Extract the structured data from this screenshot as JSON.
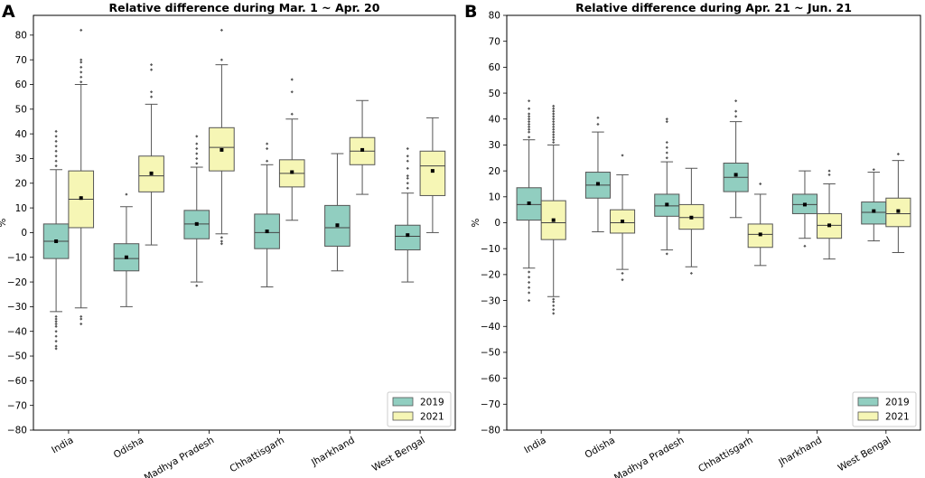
{
  "colors": {
    "2019": "#91cec0",
    "2021": "#f6f6b5"
  },
  "chart_data": [
    {
      "type": "boxplot",
      "panel_label": "A",
      "title": "Relative difference during Mar. 1 ~ Apr. 20",
      "xlabel": "",
      "ylabel": "%",
      "ylim": [
        -80,
        88
      ],
      "yticks": [
        -80,
        -70,
        -60,
        -50,
        -40,
        -30,
        -20,
        -10,
        0,
        10,
        20,
        30,
        40,
        50,
        60,
        70,
        80
      ],
      "categories": [
        "India",
        "Odisha",
        "Madhya Pradesh",
        "Chhattisgarh",
        "Jharkhand",
        "West Bengal"
      ],
      "legend": {
        "position": "bottom-right",
        "entries": [
          "2019",
          "2021"
        ]
      },
      "series": [
        {
          "name": "2019",
          "boxes": [
            {
              "lw": -32,
              "q1": -10.5,
              "median": -3.5,
              "q3": 3.5,
              "uw": 25.5,
              "mean": -3.5,
              "outliers": [
                -47,
                -46,
                -44,
                -42,
                -40,
                -38,
                -37,
                -36,
                -35,
                -34,
                27,
                29,
                31,
                33,
                35,
                37,
                39,
                41
              ]
            },
            {
              "lw": -30,
              "q1": -15.5,
              "median": -10.5,
              "q3": -4.5,
              "uw": 10.5,
              "mean": -10,
              "outliers": [
                15.5
              ]
            },
            {
              "lw": -20,
              "q1": -2.5,
              "median": 3.5,
              "q3": 9,
              "uw": 26.5,
              "mean": 3.5,
              "outliers": [
                -21.5,
                28,
                30,
                32,
                34,
                36,
                39
              ]
            },
            {
              "lw": -22,
              "q1": -6.5,
              "median": 0,
              "q3": 7.5,
              "uw": 27.5,
              "mean": 0.5,
              "outliers": [
                29,
                34,
                36
              ]
            },
            {
              "lw": -15.5,
              "q1": -5.5,
              "median": 2,
              "q3": 11,
              "uw": 32,
              "mean": 3,
              "outliers": []
            },
            {
              "lw": -20,
              "q1": -7,
              "median": -1.5,
              "q3": 3,
              "uw": 16,
              "mean": -1,
              "outliers": [
                18,
                20,
                22,
                23,
                26,
                29,
                31,
                34
              ]
            }
          ]
        },
        {
          "name": "2021",
          "boxes": [
            {
              "lw": -30.5,
              "q1": 2,
              "median": 13.5,
              "q3": 25,
              "uw": 60,
              "mean": 14,
              "outliers": [
                -37,
                -35,
                -34,
                61,
                63,
                65,
                67,
                69,
                70,
                82
              ]
            },
            {
              "lw": -5,
              "q1": 16.5,
              "median": 23,
              "q3": 31,
              "uw": 52,
              "mean": 24,
              "outliers": [
                55,
                57,
                66,
                68
              ]
            },
            {
              "lw": -0.5,
              "q1": 25,
              "median": 34.5,
              "q3": 42.5,
              "uw": 68,
              "mean": 33.5,
              "outliers": [
                -2,
                -3.5,
                -4.5,
                70,
                82
              ]
            },
            {
              "lw": 5,
              "q1": 18.5,
              "median": 24,
              "q3": 29.5,
              "uw": 46,
              "mean": 24.5,
              "outliers": [
                48,
                57,
                62
              ]
            },
            {
              "lw": 15.5,
              "q1": 27.5,
              "median": 33,
              "q3": 38.5,
              "uw": 53.5,
              "mean": 33.5,
              "outliers": []
            },
            {
              "lw": 0,
              "q1": 15,
              "median": 27,
              "q3": 33,
              "uw": 46.5,
              "mean": 25,
              "outliers": []
            }
          ]
        }
      ]
    },
    {
      "type": "boxplot",
      "panel_label": "B",
      "title": "Relative difference during Apr. 21 ~ Jun. 21",
      "xlabel": "",
      "ylabel": "%",
      "ylim": [
        -80,
        80
      ],
      "yticks": [
        -80,
        -70,
        -60,
        -50,
        -40,
        -30,
        -20,
        -10,
        0,
        10,
        20,
        30,
        40,
        50,
        60,
        70,
        80
      ],
      "categories": [
        "India",
        "Odisha",
        "Madhya Pradesh",
        "Chhattisgarh",
        "Jharkhand",
        "West Bengal"
      ],
      "legend": {
        "position": "bottom-right",
        "entries": [
          "2019",
          "2021"
        ]
      },
      "series": [
        {
          "name": "2019",
          "boxes": [
            {
              "lw": -17.5,
              "q1": 1,
              "median": 7,
              "q3": 13.5,
              "uw": 32,
              "mean": 7.5,
              "outliers": [
                -30,
                -27,
                -25,
                -23,
                -21,
                -19,
                33,
                35,
                36,
                37,
                38,
                39,
                40,
                41,
                42,
                44,
                47
              ]
            },
            {
              "lw": -3.5,
              "q1": 9.5,
              "median": 14.5,
              "q3": 19.5,
              "uw": 35,
              "mean": 15,
              "outliers": [
                38,
                40.5
              ]
            },
            {
              "lw": -10.5,
              "q1": 2.5,
              "median": 6.5,
              "q3": 11,
              "uw": 23.5,
              "mean": 7,
              "outliers": [
                -12,
                25,
                27,
                29,
                31,
                39,
                40
              ]
            },
            {
              "lw": 2,
              "q1": 12,
              "median": 17.5,
              "q3": 23,
              "uw": 39,
              "mean": 18.5,
              "outliers": [
                41,
                43,
                47
              ]
            },
            {
              "lw": -6,
              "q1": 3.5,
              "median": 7,
              "q3": 11,
              "uw": 20,
              "mean": 7,
              "outliers": [
                -9
              ]
            },
            {
              "lw": -7,
              "q1": -0.5,
              "median": 4,
              "q3": 8,
              "uw": 19.5,
              "mean": 4.5,
              "outliers": [
                20.5
              ]
            }
          ]
        },
        {
          "name": "2021",
          "boxes": [
            {
              "lw": -28.5,
              "q1": -6.5,
              "median": 0,
              "q3": 8.5,
              "uw": 30,
              "mean": 1,
              "outliers": [
                -35,
                -33.5,
                -32,
                -30.5,
                -29.5,
                31,
                32,
                33,
                34,
                35,
                36,
                37,
                38,
                39,
                40,
                41,
                42,
                43,
                44,
                45
              ]
            },
            {
              "lw": -18,
              "q1": -4,
              "median": 0,
              "q3": 5,
              "uw": 18.5,
              "mean": 0.5,
              "outliers": [
                -19.5,
                -22,
                26
              ]
            },
            {
              "lw": -17,
              "q1": -2.5,
              "median": 2,
              "q3": 7,
              "uw": 21,
              "mean": 2,
              "outliers": [
                -19.5
              ]
            },
            {
              "lw": -16.5,
              "q1": -9.5,
              "median": -4.5,
              "q3": -0.5,
              "uw": 11,
              "mean": -4.5,
              "outliers": [
                15
              ]
            },
            {
              "lw": -14,
              "q1": -6,
              "median": -1,
              "q3": 3.5,
              "uw": 15,
              "mean": -1,
              "outliers": [
                18.5,
                20
              ]
            },
            {
              "lw": -11.5,
              "q1": -1.5,
              "median": 3.5,
              "q3": 9.5,
              "uw": 24,
              "mean": 4.5,
              "outliers": [
                26.5
              ]
            }
          ]
        }
      ]
    }
  ]
}
